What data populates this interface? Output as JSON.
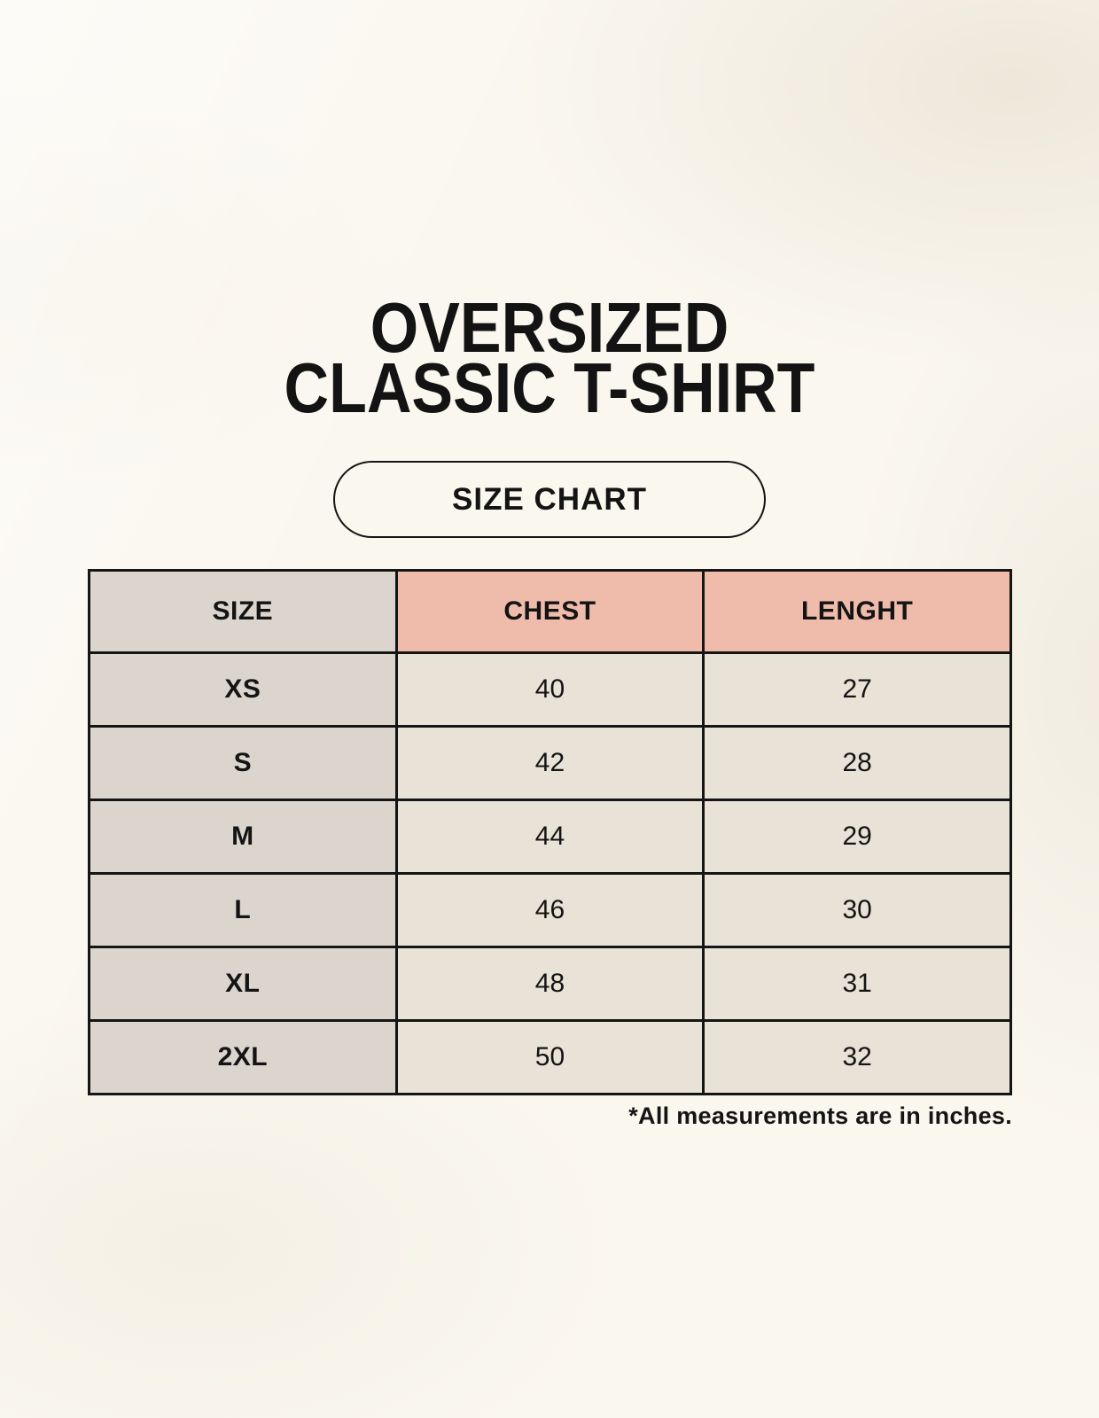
{
  "page": {
    "title_line1": "OVERSIZED",
    "title_line2": "CLASSIC T-SHIRT",
    "size_chart_button": "SIZE CHART",
    "footnote": "*All measurements are in inches."
  },
  "table": {
    "columns": [
      "SIZE",
      "CHEST",
      "LENGHT"
    ],
    "rows": [
      {
        "size": "XS",
        "chest": "40",
        "length": "27"
      },
      {
        "size": "S",
        "chest": "42",
        "length": "28"
      },
      {
        "size": "M",
        "chest": "44",
        "length": "29"
      },
      {
        "size": "L",
        "chest": "46",
        "length": "30"
      },
      {
        "size": "XL",
        "chest": "48",
        "length": "31"
      },
      {
        "size": "2XL",
        "chest": "50",
        "length": "32"
      }
    ]
  },
  "colors": {
    "background": "#FAF7EF",
    "size_column_bg": "#DBD5CE",
    "measure_header_bg": "#EFBBAB",
    "data_cell_bg": "#E8E2D7",
    "border": "#151515",
    "text": "#141414"
  }
}
